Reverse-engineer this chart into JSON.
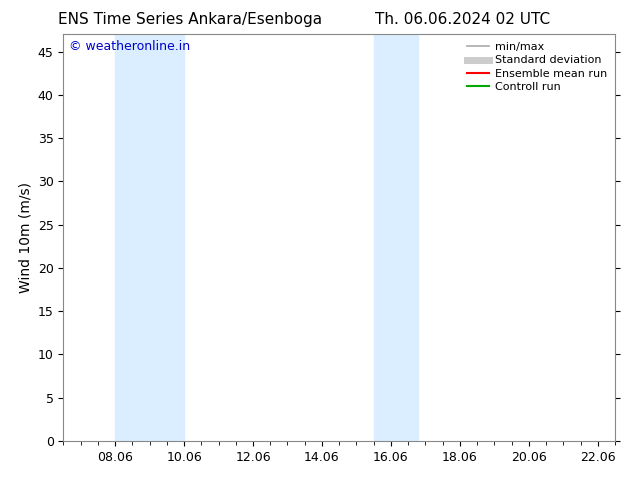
{
  "title_left": "ENS Time Series Ankara/Esenboga",
  "title_right": "Th. 06.06.2024 02 UTC",
  "ylabel": "Wind 10m (m/s)",
  "watermark": "© weatheronline.in",
  "watermark_color": "#0000cc",
  "xlim_start": 6.5,
  "xlim_end": 22.5,
  "ylim_bottom": 0,
  "ylim_top": 47,
  "yticks": [
    0,
    5,
    10,
    15,
    20,
    25,
    30,
    35,
    40,
    45
  ],
  "xtick_labels": [
    "08.06",
    "10.06",
    "12.06",
    "14.06",
    "16.06",
    "18.06",
    "20.06",
    "22.06"
  ],
  "xtick_positions": [
    8,
    10,
    12,
    14,
    16,
    18,
    20,
    22
  ],
  "shaded_bands": [
    {
      "x_start": 8.0,
      "x_end": 10.0
    },
    {
      "x_start": 15.5,
      "x_end": 16.8
    }
  ],
  "band_color": "#daeeff",
  "background_color": "#ffffff",
  "legend_items": [
    {
      "label": "min/max",
      "color": "#aaaaaa",
      "lw": 1.2,
      "linestyle": "-"
    },
    {
      "label": "Standard deviation",
      "color": "#cccccc",
      "lw": 5,
      "linestyle": "-"
    },
    {
      "label": "Ensemble mean run",
      "color": "#ff0000",
      "lw": 1.5,
      "linestyle": "-"
    },
    {
      "label": "Controll run",
      "color": "#00aa00",
      "lw": 1.5,
      "linestyle": "-"
    }
  ],
  "title_fontsize": 11,
  "tick_fontsize": 9,
  "ylabel_fontsize": 10,
  "legend_fontsize": 8,
  "watermark_fontsize": 9
}
